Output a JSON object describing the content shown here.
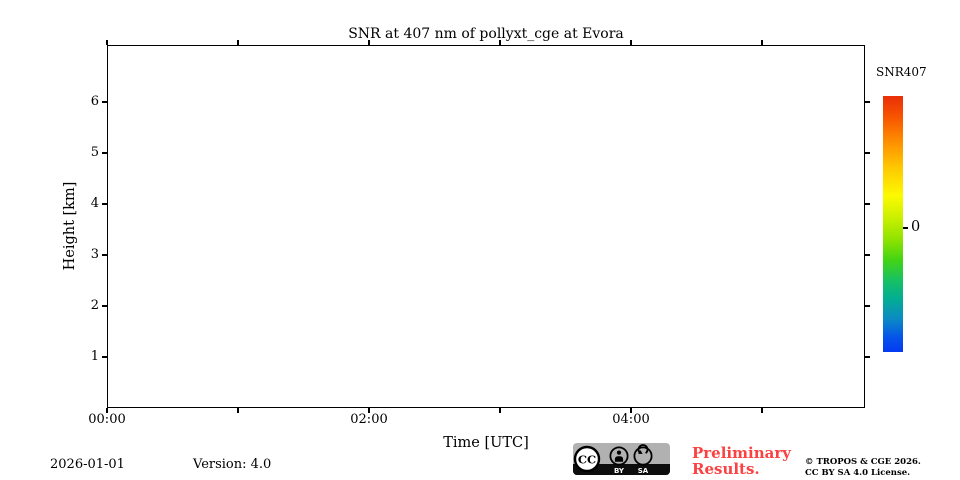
{
  "chart_data": {
    "type": "heatmap",
    "title": "SNR at 407 nm of pollyxt_cge at Evora",
    "xlabel": "Time [UTC]",
    "ylabel": "Height [km]",
    "x_axis": {
      "unit": "UTC time",
      "range_hours": [
        0,
        5.79
      ],
      "ticks": [
        {
          "h": 0,
          "label": "00:00"
        },
        {
          "h": 1,
          "label": ""
        },
        {
          "h": 2,
          "label": "02:00"
        },
        {
          "h": 3,
          "label": ""
        },
        {
          "h": 4,
          "label": "04:00"
        },
        {
          "h": 5,
          "label": ""
        }
      ]
    },
    "y_axis": {
      "unit": "km",
      "range_km": [
        0,
        7.1
      ],
      "ticks": [
        {
          "km": 1,
          "label": "1"
        },
        {
          "km": 2,
          "label": "2"
        },
        {
          "km": 3,
          "label": "3"
        },
        {
          "km": 4,
          "label": "4"
        },
        {
          "km": 5,
          "label": "5"
        },
        {
          "km": 6,
          "label": "6"
        }
      ]
    },
    "values": [],
    "legend_position": "colorbar-right",
    "grid": false,
    "colorbar": {
      "label": "SNR407",
      "ticks": [
        {
          "frac": 0.516,
          "label": "0"
        }
      ],
      "gradient": [
        {
          "c": "#e92f08",
          "p": 0
        },
        {
          "c": "#f75300",
          "p": 8
        },
        {
          "c": "#fd8a00",
          "p": 17
        },
        {
          "c": "#ffc800",
          "p": 28
        },
        {
          "c": "#fbfa00",
          "p": 39
        },
        {
          "c": "#c8ef00",
          "p": 48
        },
        {
          "c": "#8fe300",
          "p": 56
        },
        {
          "c": "#44d414",
          "p": 64
        },
        {
          "c": "#17c163",
          "p": 72
        },
        {
          "c": "#03ae92",
          "p": 79
        },
        {
          "c": "#0b8ac4",
          "p": 87
        },
        {
          "c": "#0556e8",
          "p": 94
        },
        {
          "c": "#0439f3",
          "p": 100
        }
      ]
    }
  },
  "footer": {
    "date": "2026-01-01",
    "version": "Version: 4.0",
    "preliminary_line1": "Preliminary",
    "preliminary_line2": "Results.",
    "copyright_line1": "© TROPOS & CGE 2026.",
    "copyright_line2": "CC BY SA 4.0 License."
  },
  "badge": {
    "cc_text": "CC",
    "by_text": "BY",
    "sa_text": "SA"
  },
  "colors": {
    "preliminary_red": "#fb4141",
    "badge_gray": "#b1b1b1",
    "badge_black": "#0d0d0d",
    "axis": "#000000",
    "background": "#ffffff"
  }
}
